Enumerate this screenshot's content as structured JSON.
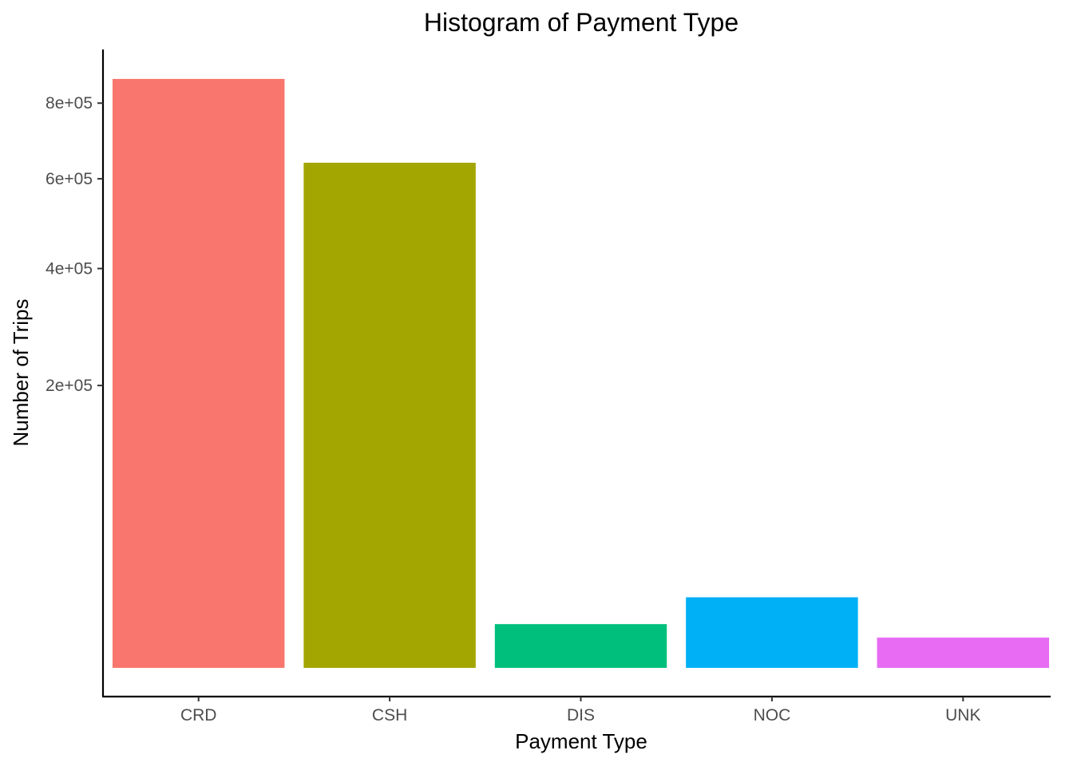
{
  "chart_data": {
    "type": "bar",
    "title": "Histogram of Payment Type",
    "xlabel": "Payment Type",
    "ylabel": "Number of Trips",
    "y_scale": "sqrt",
    "categories": [
      "CRD",
      "CSH",
      "DIS",
      "NOC",
      "UNK"
    ],
    "values": [
      870000,
      640000,
      4800,
      12500,
      2300
    ],
    "colors": [
      "#F8766D",
      "#A3A500",
      "#00BF7D",
      "#00B0F6",
      "#E76BF3"
    ],
    "yticks": [
      {
        "value": 200000,
        "label": "2e+05"
      },
      {
        "value": 400000,
        "label": "4e+05"
      },
      {
        "value": 600000,
        "label": "6e+05"
      },
      {
        "value": 800000,
        "label": "8e+05"
      }
    ],
    "ylim": [
      0,
      920000
    ],
    "grid": false,
    "legend": "none"
  }
}
